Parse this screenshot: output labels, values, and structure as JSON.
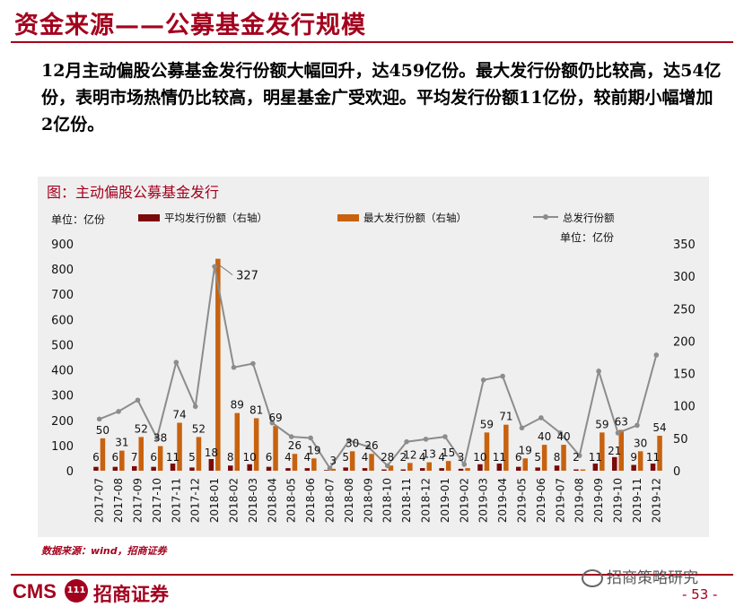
{
  "page": {
    "title": "资金来源——公募基金发行规模",
    "summary": "12月主动偏股公募基金发行份额大幅回升，达459亿份。最大发行份额仍比较高，达54亿份，表明市场热情仍比较高，明星基金广受欢迎。平均发行份额11亿份，较前期小幅增加2亿份。",
    "source": "数据来源：wind，招商证券",
    "page_number": "- 53 -",
    "logo_cms": "CMS",
    "logo_badge": "111",
    "logo_name": "招商证券",
    "wechat_label": "招商策略研究"
  },
  "chart_data": {
    "type": "bar",
    "title": "图：主动偏股公募基金发行",
    "left_unit": "单位：亿份",
    "right_unit": "单位：亿份",
    "categories": [
      "2017-07",
      "2017-08",
      "2017-09",
      "2017-10",
      "2017-11",
      "2017-12",
      "2018-01",
      "2018-02",
      "2018-03",
      "2018-04",
      "2018-05",
      "2018-06",
      "2018-07",
      "2018-08",
      "2018-09",
      "2018-10",
      "2018-11",
      "2018-12",
      "2019-01",
      "2019-02",
      "2019-03",
      "2019-04",
      "2019-05",
      "2019-06",
      "2019-07",
      "2019-08",
      "2019-09",
      "2019-10",
      "2019-11",
      "2019-12"
    ],
    "left_axis": {
      "min": 0,
      "max": 900,
      "ticks": [
        0,
        100,
        200,
        300,
        400,
        500,
        600,
        700,
        800,
        900
      ]
    },
    "right_axis": {
      "min": 0,
      "max": 350,
      "ticks": [
        0,
        50,
        100,
        150,
        200,
        250,
        300,
        350
      ]
    },
    "series": [
      {
        "name": "平均发行份额（右轴）",
        "kind": "bar",
        "axis": "right",
        "color": "#7b0a0a",
        "values": [
          6,
          6,
          7,
          6,
          11,
          5,
          18,
          8,
          10,
          6,
          4,
          4,
          1,
          5,
          4,
          2,
          2,
          4,
          4,
          3,
          10,
          11,
          6,
          5,
          8,
          2,
          11,
          21,
          9,
          11
        ],
        "labels": [
          "6",
          "6",
          "7",
          "6",
          "11",
          "5",
          "18",
          "8",
          "10",
          "6",
          "4",
          "4",
          "",
          "5",
          "4",
          "2",
          "2",
          "4",
          "4",
          "3",
          "10",
          "11",
          "6",
          "5",
          "8",
          "2",
          "11",
          "21",
          "9",
          "11"
        ]
      },
      {
        "name": "最大发行份额（右轴）",
        "kind": "bar",
        "axis": "right",
        "color": "#c8620e",
        "values": [
          50,
          31,
          52,
          38,
          74,
          52,
          327,
          89,
          81,
          69,
          26,
          19,
          3,
          30,
          26,
          8,
          12,
          13,
          15,
          4,
          59,
          71,
          19,
          40,
          40,
          2,
          59,
          63,
          30,
          54
        ],
        "labels": [
          "50",
          "31",
          "52",
          "38",
          "74",
          "52",
          "327",
          "89",
          "81",
          "69",
          "26",
          "19",
          "3",
          "30",
          "26",
          "8",
          "12",
          "13",
          "15",
          "",
          "59",
          "71",
          "19",
          "40",
          "40",
          "",
          "59",
          "63",
          "30",
          "54"
        ]
      },
      {
        "name": "总发行份额",
        "kind": "line",
        "axis": "left",
        "color": "#8c8c8c",
        "values": [
          205,
          235,
          280,
          130,
          430,
          255,
          810,
          410,
          425,
          190,
          135,
          130,
          10,
          120,
          95,
          20,
          115,
          125,
          135,
          25,
          360,
          375,
          170,
          210,
          150,
          60,
          395,
          150,
          180,
          459
        ]
      }
    ],
    "legend_position": "top",
    "grid": false
  }
}
